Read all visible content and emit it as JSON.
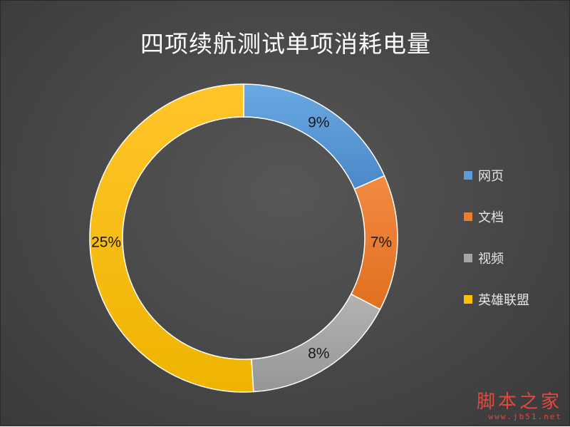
{
  "chart_data": {
    "type": "pie",
    "title": "四项续航测试单项消耗电量",
    "donut": true,
    "categories": [
      "网页",
      "文档",
      "视频",
      "英雄联盟"
    ],
    "values": [
      9,
      7,
      8,
      25
    ],
    "value_labels": [
      "9%",
      "7%",
      "8%",
      "25%"
    ],
    "colors": [
      "#5b9bd5",
      "#ed7d31",
      "#a5a5a5",
      "#ffc000"
    ],
    "legend_position": "right"
  },
  "watermark": {
    "main": "脚本之家",
    "url": "www.jb51.net"
  }
}
